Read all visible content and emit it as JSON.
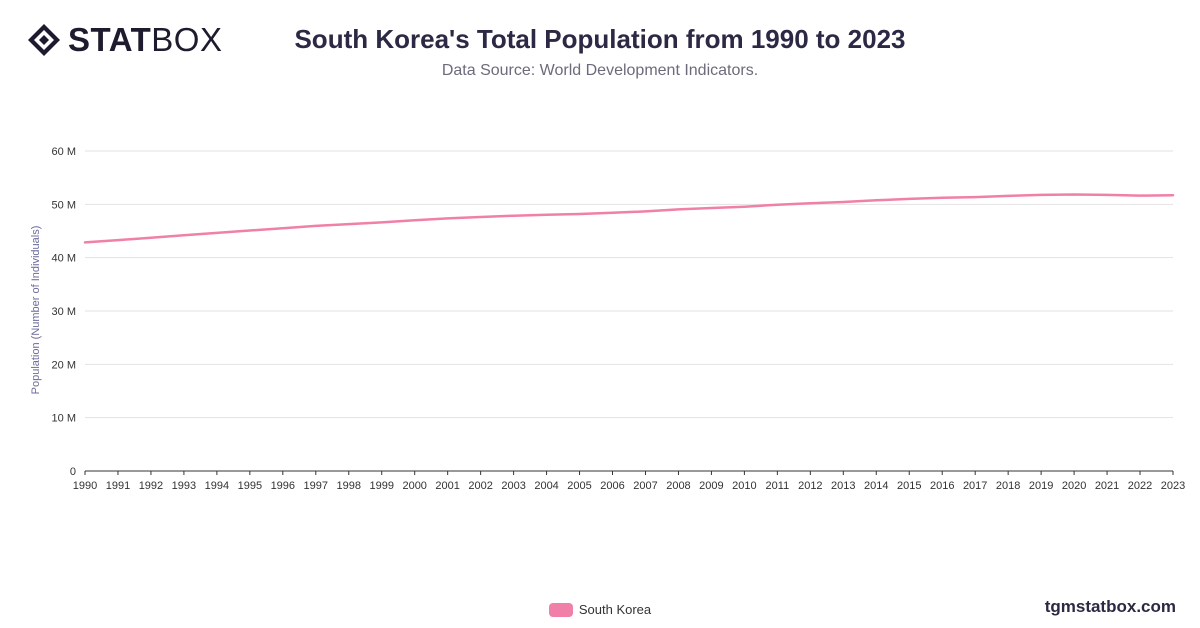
{
  "header": {
    "logo_bold": "STAT",
    "logo_light": "BOX",
    "title": "South Korea's Total Population from 1990 to 2023",
    "subtitle": "Data Source: World Development Indicators."
  },
  "footer": {
    "brand": "tgmstatbox.com"
  },
  "colors": {
    "series": "#f080a8",
    "grid": "#e2e2e2",
    "axis": "#333333",
    "text": "#2b2944"
  },
  "chart_data": {
    "type": "line",
    "title": "South Korea's Total Population from 1990 to 2023",
    "subtitle": "Data Source: World Development Indicators.",
    "xlabel": "",
    "ylabel": "Population (Number of Individuals)",
    "ylim": [
      0,
      60000000
    ],
    "yticks": [
      0,
      10000000,
      20000000,
      30000000,
      40000000,
      50000000,
      60000000
    ],
    "ytick_labels": [
      "0",
      "10 M",
      "20 M",
      "30 M",
      "40 M",
      "50 M",
      "60 M"
    ],
    "grid": true,
    "legend_position": "bottom-center",
    "x": [
      "1990",
      "1991",
      "1992",
      "1993",
      "1994",
      "1995",
      "1996",
      "1997",
      "1998",
      "1999",
      "2000",
      "2001",
      "2002",
      "2003",
      "2004",
      "2005",
      "2006",
      "2007",
      "2008",
      "2009",
      "2010",
      "2011",
      "2012",
      "2013",
      "2014",
      "2015",
      "2016",
      "2017",
      "2018",
      "2019",
      "2020",
      "2021",
      "2022",
      "2023"
    ],
    "series": [
      {
        "name": "South Korea",
        "values": [
          42870000,
          43300000,
          43750000,
          44190000,
          44640000,
          45090000,
          45530000,
          45950000,
          46290000,
          46620000,
          47010000,
          47360000,
          47620000,
          47860000,
          48040000,
          48190000,
          48440000,
          48680000,
          49050000,
          49310000,
          49550000,
          49940000,
          50200000,
          50430000,
          50750000,
          51010000,
          51220000,
          51360000,
          51590000,
          51760000,
          51840000,
          51770000,
          51630000,
          51710000
        ]
      }
    ]
  }
}
